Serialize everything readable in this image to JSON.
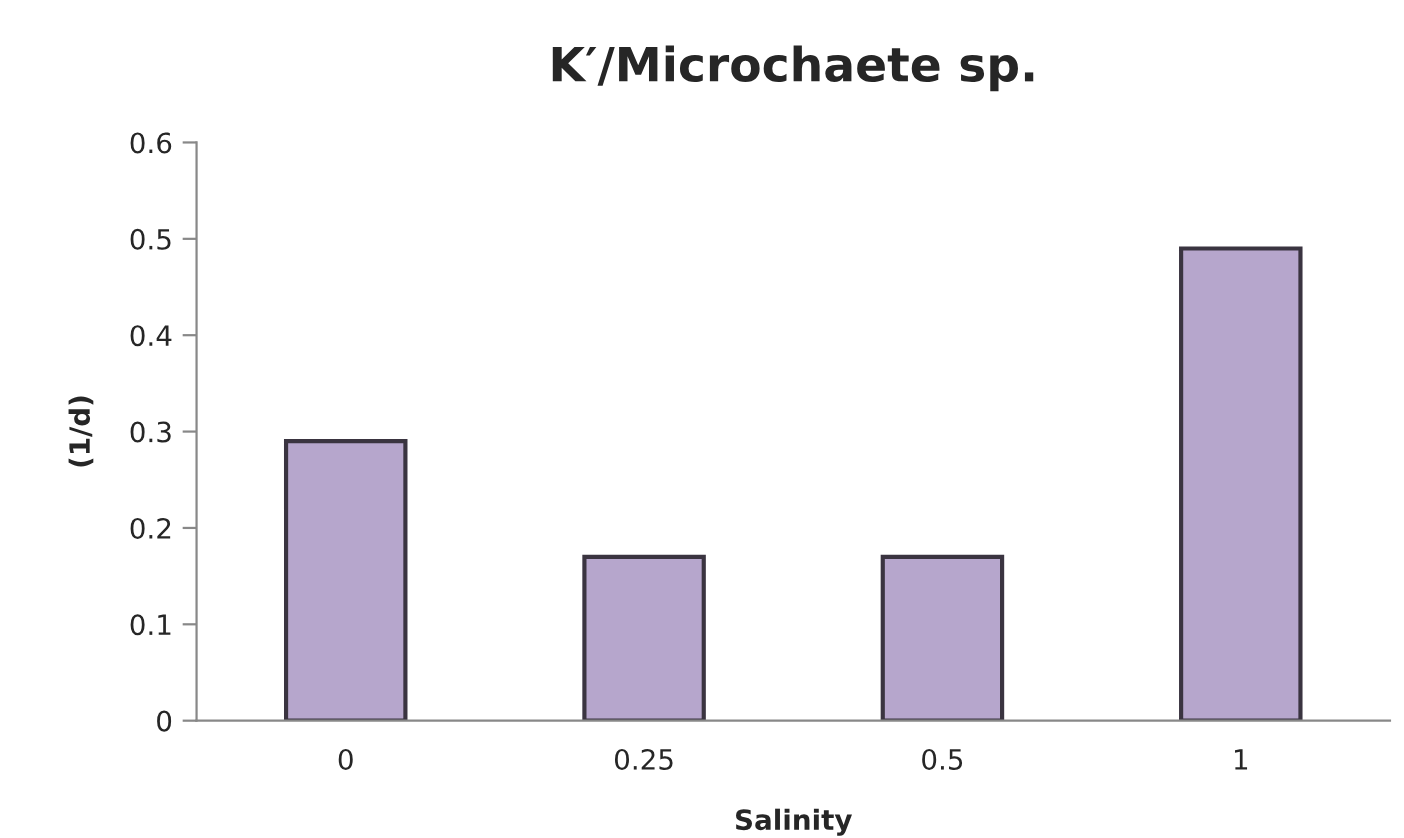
{
  "chart_data": {
    "type": "bar",
    "title": "K′/Microchaete sp.",
    "xlabel": "Salinity",
    "ylabel": "(1/d)",
    "categories": [
      "0",
      "0.25",
      "0.5",
      "1"
    ],
    "values": [
      0.29,
      0.17,
      0.17,
      0.49
    ],
    "color": "#b6a6cc",
    "ylim": [
      0,
      0.6
    ],
    "yticks": [
      0,
      0.1,
      0.2,
      0.3,
      0.4,
      0.5,
      0.6
    ],
    "grid": false
  }
}
